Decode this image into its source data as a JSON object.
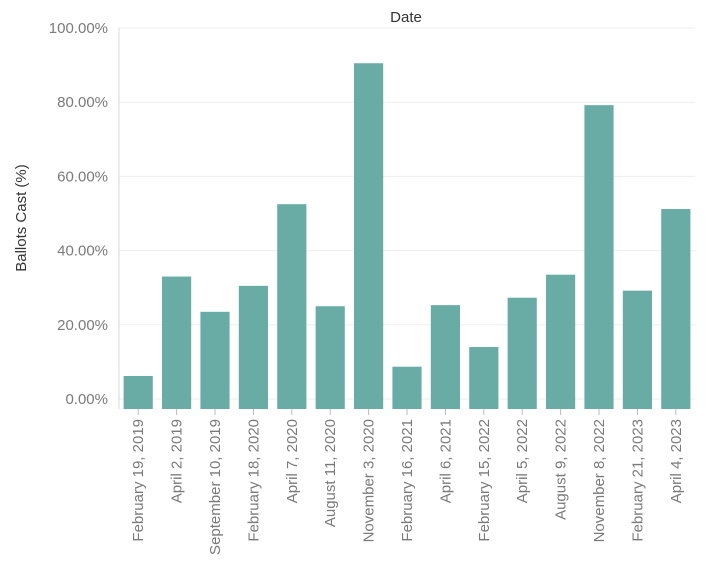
{
  "chart_data": {
    "type": "bar",
    "title": "",
    "xlabel": "Date",
    "ylabel": "Ballots Cast (%)",
    "xlabel_position": "top",
    "categories": [
      "February 19, 2019",
      "April 2, 2019",
      "September 10, 2019",
      "February 18, 2020",
      "April 7, 2020",
      "August 11, 2020",
      "November 3, 2020",
      "February 16, 2021",
      "April 6, 2021",
      "February 15, 2022",
      "April 5, 2022",
      "August 9, 2022",
      "November 8, 2022",
      "February 21, 2023",
      "April 4, 2023"
    ],
    "values": [
      6.2,
      33.0,
      23.5,
      30.5,
      52.5,
      25.0,
      90.5,
      8.7,
      25.3,
      14.0,
      27.3,
      33.5,
      79.2,
      29.2,
      51.2
    ],
    "ylim": [
      -2.7,
      100
    ],
    "yticks": [
      0,
      20,
      40,
      60,
      80,
      100
    ],
    "ytick_labels": [
      "0.00%",
      "20.00%",
      "40.00%",
      "60.00%",
      "80.00%",
      "100.00%"
    ],
    "grid": true,
    "legend": "none",
    "colors": {
      "bar": "#69aca5",
      "grid": "#eeeeee",
      "tick_text": "#7a7a7a",
      "axis_title": "#333333"
    }
  }
}
